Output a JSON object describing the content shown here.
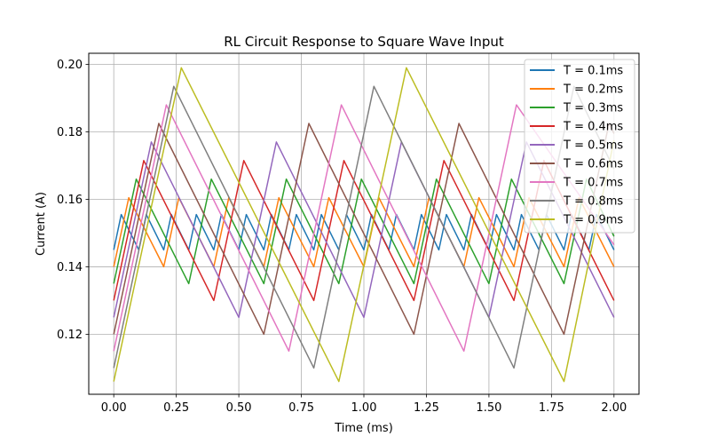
{
  "chart_data": {
    "type": "line",
    "title": "RL Circuit Response to Square Wave Input",
    "xlabel": "Time (ms)",
    "ylabel": "Current (A)",
    "xlim": [
      -0.1,
      2.1
    ],
    "ylim": [
      0.1022,
      0.2033
    ],
    "x_ticks": [
      0.0,
      0.25,
      0.5,
      0.75,
      1.0,
      1.25,
      1.5,
      1.75,
      2.0
    ],
    "x_tick_labels": [
      "0.00",
      "0.25",
      "0.50",
      "0.75",
      "1.00",
      "1.25",
      "1.50",
      "1.75",
      "2.00"
    ],
    "y_ticks": [
      0.12,
      0.14,
      0.16,
      0.18,
      0.2
    ],
    "y_tick_labels": [
      "0.12",
      "0.14",
      "0.16",
      "0.18",
      "0.20"
    ],
    "grid": true,
    "legend_position": "top-right",
    "series": [
      {
        "name": "T = 0.1ms",
        "color": "#1f77b4",
        "x": [
          0,
          0.03,
          0.1,
          0.13,
          0.2,
          0.23,
          0.3,
          0.33,
          0.4,
          0.43,
          0.5,
          0.53,
          0.6,
          0.63,
          0.7,
          0.73,
          0.8,
          0.83,
          0.9,
          0.93,
          1.0,
          1.03,
          1.1,
          1.13,
          1.2,
          1.23,
          1.3,
          1.33,
          1.4,
          1.43,
          1.5,
          1.53,
          1.6,
          1.63,
          1.7,
          1.73,
          1.8,
          1.83,
          1.9,
          1.93,
          2.0
        ],
        "y": [
          0.145,
          0.1555,
          0.145,
          0.1555,
          0.145,
          0.1555,
          0.145,
          0.1555,
          0.145,
          0.1555,
          0.145,
          0.1555,
          0.145,
          0.1555,
          0.145,
          0.1555,
          0.145,
          0.1555,
          0.145,
          0.1555,
          0.145,
          0.1555,
          0.145,
          0.1555,
          0.145,
          0.1555,
          0.145,
          0.1555,
          0.145,
          0.1555,
          0.145,
          0.1555,
          0.145,
          0.1555,
          0.145,
          0.1555,
          0.145,
          0.1555,
          0.145,
          0.1555,
          0.145
        ]
      },
      {
        "name": "T = 0.2ms",
        "color": "#ff7f0e",
        "x": [
          0,
          0.06,
          0.2,
          0.26,
          0.4,
          0.46,
          0.6,
          0.66,
          0.8,
          0.86,
          1.0,
          1.06,
          1.2,
          1.26,
          1.4,
          1.46,
          1.6,
          1.66,
          1.8,
          1.86,
          2.0
        ],
        "y": [
          0.14,
          0.1605,
          0.14,
          0.1605,
          0.14,
          0.1605,
          0.14,
          0.1605,
          0.14,
          0.1605,
          0.14,
          0.1605,
          0.14,
          0.1605,
          0.14,
          0.1605,
          0.14,
          0.1605,
          0.14,
          0.1605,
          0.14
        ]
      },
      {
        "name": "T = 0.3ms",
        "color": "#2ca02c",
        "x": [
          0,
          0.09,
          0.3,
          0.39,
          0.6,
          0.69,
          0.9,
          0.99,
          1.2,
          1.29,
          1.5,
          1.59,
          1.8,
          1.89,
          2.0
        ],
        "y": [
          0.135,
          0.166,
          0.135,
          0.166,
          0.135,
          0.166,
          0.135,
          0.166,
          0.135,
          0.166,
          0.135,
          0.166,
          0.135,
          0.166,
          0.149
        ]
      },
      {
        "name": "T = 0.4ms",
        "color": "#d62728",
        "x": [
          0,
          0.12,
          0.4,
          0.52,
          0.8,
          0.92,
          1.2,
          1.32,
          1.6,
          1.72,
          2.0
        ],
        "y": [
          0.13,
          0.1715,
          0.13,
          0.1715,
          0.13,
          0.1715,
          0.13,
          0.1715,
          0.13,
          0.1715,
          0.13
        ]
      },
      {
        "name": "T = 0.5ms",
        "color": "#9467bd",
        "x": [
          0,
          0.15,
          0.5,
          0.65,
          1.0,
          1.15,
          1.5,
          1.65,
          2.0
        ],
        "y": [
          0.125,
          0.177,
          0.125,
          0.177,
          0.125,
          0.177,
          0.125,
          0.177,
          0.125
        ]
      },
      {
        "name": "T = 0.6ms",
        "color": "#8c564b",
        "x": [
          0,
          0.18,
          0.6,
          0.78,
          1.2,
          1.38,
          1.8,
          1.98,
          2.0
        ],
        "y": [
          0.12,
          0.1825,
          0.12,
          0.1825,
          0.12,
          0.1825,
          0.12,
          0.1825,
          0.1795
        ]
      },
      {
        "name": "T = 0.7ms",
        "color": "#e377c2",
        "x": [
          0,
          0.21,
          0.7,
          0.91,
          1.4,
          1.61,
          2.0
        ],
        "y": [
          0.115,
          0.188,
          0.115,
          0.188,
          0.115,
          0.188,
          0.1465
        ]
      },
      {
        "name": "T = 0.8ms",
        "color": "#7f7f7f",
        "x": [
          0,
          0.24,
          0.8,
          1.04,
          1.6,
          1.84,
          2.0
        ],
        "y": [
          0.11,
          0.1935,
          0.11,
          0.1935,
          0.11,
          0.1935,
          0.169
        ]
      },
      {
        "name": "T = 0.9ms",
        "color": "#bcbd22",
        "x": [
          0,
          0.27,
          0.9,
          1.17,
          1.8,
          2.0
        ],
        "y": [
          0.106,
          0.199,
          0.106,
          0.199,
          0.106,
          0.1775
        ]
      }
    ]
  }
}
